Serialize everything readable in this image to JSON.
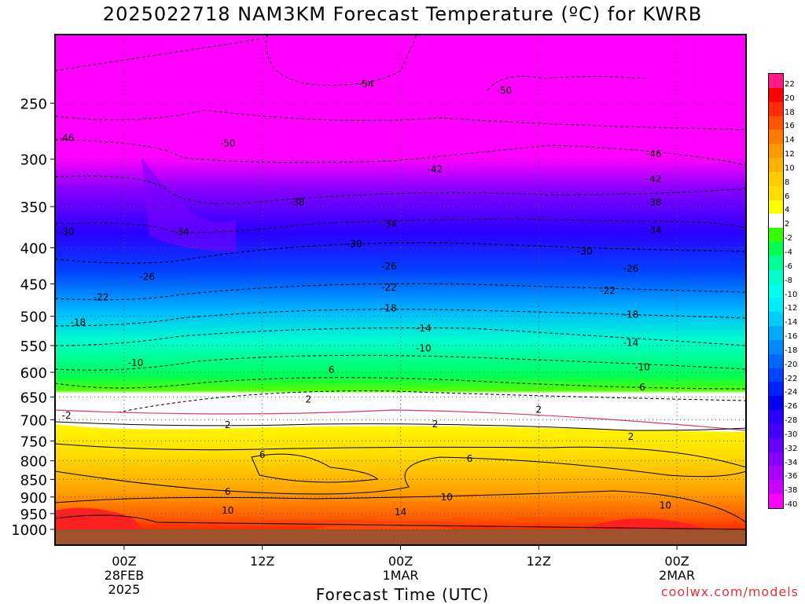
{
  "title": "2025022718 NAM3KM Forecast Temperature (ºC) for KWRB",
  "credit": "coolwx.com/models",
  "chart_data": {
    "type": "heatmap",
    "title": "2025022718 NAM3KM Forecast Temperature (ºC) for KWRB",
    "xlabel": "Forecast Time (UTC)",
    "ylabel": "",
    "y_scale": "log-pressure (inverted)",
    "ylim": [
      1000,
      200
    ],
    "y_ticks": [
      "250",
      "300",
      "350",
      "400",
      "450",
      "500",
      "550",
      "600",
      "650",
      "700",
      "750",
      "800",
      "850",
      "900",
      "950",
      "1000"
    ],
    "x_ticks": [
      {
        "label": [
          "00Z",
          "28FEB",
          "2025"
        ]
      },
      {
        "label": [
          "12Z"
        ]
      },
      {
        "label": [
          "00Z",
          "1MAR"
        ]
      },
      {
        "label": [
          "12Z"
        ]
      },
      {
        "label": [
          "00Z",
          "2MAR"
        ]
      }
    ],
    "x_range_hours": [
      -6,
      54
    ],
    "colorbar": {
      "labels": [
        "22",
        "20",
        "18",
        "16",
        "14",
        "12",
        "10",
        "8",
        "6",
        "4",
        "2",
        "-2",
        "-4",
        "-6",
        "-8",
        "-10",
        "-12",
        "-14",
        "-16",
        "-18",
        "-20",
        "-22",
        "-24",
        "-26",
        "-28",
        "-30",
        "-32",
        "-34",
        "-36",
        "-38",
        "-40"
      ],
      "colors": [
        "#ff1a8c",
        "#ff0000",
        "#ff2a00",
        "#ff5500",
        "#ff7a00",
        "#ff9900",
        "#ffb300",
        "#ffcc00",
        "#ffdd00",
        "#ffff00",
        "#ffffff",
        "#33ff00",
        "#00ff55",
        "#00ff99",
        "#00ffcc",
        "#00ffee",
        "#00eeff",
        "#00ccff",
        "#00aaff",
        "#0088ff",
        "#0066ff",
        "#0044ff",
        "#0022ff",
        "#0000ee",
        "#2a00ff",
        "#4400ff",
        "#6600ff",
        "#8800ff",
        "#aa00ff",
        "#cc00ff",
        "#ff00ff"
      ]
    },
    "contour_labels": [
      {
        "text": "-54",
        "x_hr": 21,
        "p": 235
      },
      {
        "text": "-50",
        "x_hr": 33,
        "p": 240
      },
      {
        "text": "-46",
        "x_hr": -5,
        "p": 280
      },
      {
        "text": "-50",
        "x_hr": 9,
        "p": 285
      },
      {
        "text": "-46",
        "x_hr": 46,
        "p": 295
      },
      {
        "text": "-38",
        "x_hr": -7,
        "p": 315
      },
      {
        "text": "-42",
        "x_hr": 27,
        "p": 310
      },
      {
        "text": "-42",
        "x_hr": 46,
        "p": 320
      },
      {
        "text": "-38",
        "x_hr": 15,
        "p": 345
      },
      {
        "text": "-38",
        "x_hr": 46,
        "p": 345
      },
      {
        "text": "-34",
        "x_hr": 23,
        "p": 370
      },
      {
        "text": "-34",
        "x_hr": 46,
        "p": 378
      },
      {
        "text": "-30",
        "x_hr": -5,
        "p": 380
      },
      {
        "text": "-34",
        "x_hr": 5,
        "p": 380
      },
      {
        "text": "-30",
        "x_hr": 20,
        "p": 395
      },
      {
        "text": "-30",
        "x_hr": 40,
        "p": 405
      },
      {
        "text": "-26",
        "x_hr": 2,
        "p": 440
      },
      {
        "text": "-26",
        "x_hr": 23,
        "p": 425
      },
      {
        "text": "-26",
        "x_hr": 44,
        "p": 428
      },
      {
        "text": "-22",
        "x_hr": -2,
        "p": 470
      },
      {
        "text": "-22",
        "x_hr": 23,
        "p": 455
      },
      {
        "text": "-22",
        "x_hr": 42,
        "p": 460
      },
      {
        "text": "-18",
        "x_hr": -4,
        "p": 510
      },
      {
        "text": "-18",
        "x_hr": 23,
        "p": 487
      },
      {
        "text": "-18",
        "x_hr": 44,
        "p": 497
      },
      {
        "text": "-14",
        "x_hr": -7,
        "p": 553
      },
      {
        "text": "-14",
        "x_hr": 26,
        "p": 520
      },
      {
        "text": "-14",
        "x_hr": 44,
        "p": 545
      },
      {
        "text": "-10",
        "x_hr": 1,
        "p": 582
      },
      {
        "text": "-10",
        "x_hr": 26,
        "p": 555
      },
      {
        "text": "-10",
        "x_hr": 45,
        "p": 590
      },
      {
        "text": "-6",
        "x_hr": -9,
        "p": 625
      },
      {
        "text": "6",
        "x_hr": 18,
        "p": 595
      },
      {
        "text": "6",
        "x_hr": 45,
        "p": 630
      },
      {
        "text": "2",
        "x_hr": 16,
        "p": 655
      },
      {
        "text": "-2",
        "x_hr": -5,
        "p": 690
      },
      {
        "text": "2",
        "x_hr": 36,
        "p": 677
      },
      {
        "text": "2",
        "x_hr": 9,
        "p": 712
      },
      {
        "text": "2",
        "x_hr": 27,
        "p": 710
      },
      {
        "text": "2",
        "x_hr": 44,
        "p": 740
      },
      {
        "text": "6",
        "x_hr": 12,
        "p": 785
      },
      {
        "text": "6",
        "x_hr": 30,
        "p": 795
      },
      {
        "text": "6",
        "x_hr": 9,
        "p": 885
      },
      {
        "text": "10",
        "x_hr": 28,
        "p": 900
      },
      {
        "text": "10",
        "x_hr": 9,
        "p": 940
      },
      {
        "text": "14",
        "x_hr": 24,
        "p": 945
      },
      {
        "text": "10",
        "x_hr": 47,
        "p": 925
      }
    ]
  }
}
